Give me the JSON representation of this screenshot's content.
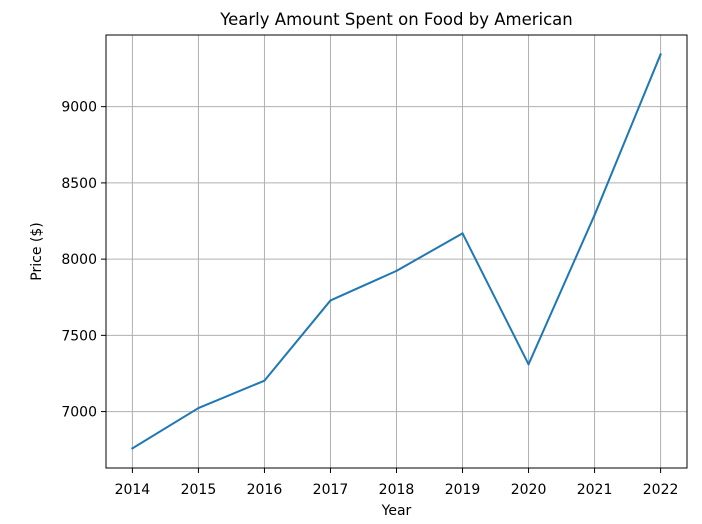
{
  "chart_data": {
    "type": "line",
    "title": "Yearly Amount Spent on Food by American",
    "xlabel": "Year",
    "ylabel": "Price ($)",
    "x": [
      2014,
      2015,
      2016,
      2017,
      2018,
      2019,
      2020,
      2021,
      2022
    ],
    "series": [
      {
        "values": [
          6759,
          7023,
          7203,
          7729,
          7923,
          8169,
          7310,
          8289,
          9343
        ],
        "color": "#1f77b4"
      }
    ],
    "xlim": [
      2013.6,
      2022.4
    ],
    "ylim": [
      6630,
      9470
    ],
    "x_ticks": [
      "2014",
      "2015",
      "2016",
      "2017",
      "2018",
      "2019",
      "2020",
      "2021",
      "2022"
    ],
    "y_ticks": [
      "7000",
      "7500",
      "8000",
      "8500",
      "9000"
    ],
    "grid": true,
    "legend": "none"
  }
}
